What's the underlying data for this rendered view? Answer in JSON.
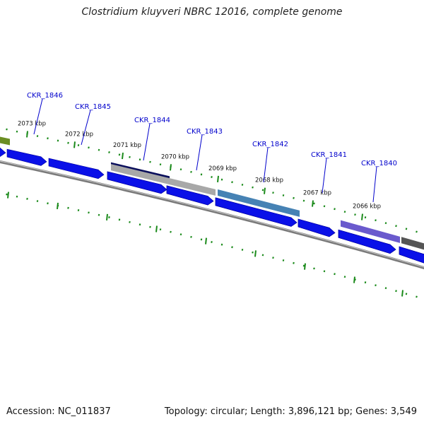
{
  "title": "Clostridium kluyveri NBRC 12016, complete genome",
  "footer": {
    "accession": "Accession: NC_011837",
    "topology": "Topology: circular; Length: 3,896,121 bp; Genes: 3,549"
  },
  "colors": {
    "background": "#ffffff",
    "gene_label": "#0000cc",
    "forward_cds": "#0a10e8",
    "reverse_cds": "#0a10e8",
    "tick": "#1a8a1a",
    "backbone": "#7a7a7a"
  },
  "ruler": {
    "unit": "kbp",
    "ticks": [
      {
        "label": "2073 kbp"
      },
      {
        "label": "2072 kbp"
      },
      {
        "label": "2071 kbp"
      },
      {
        "label": "2070 kbp"
      },
      {
        "label": "2069 kbp"
      },
      {
        "label": "2068 kbp"
      },
      {
        "label": "2067 kbp"
      },
      {
        "label": "2066 kbp"
      }
    ]
  },
  "genes": [
    {
      "label": "CKR_1846"
    },
    {
      "label": "CKR_1845"
    },
    {
      "label": "CKR_1844"
    },
    {
      "label": "CKR_1843"
    },
    {
      "label": "CKR_1842"
    },
    {
      "label": "CKR_1841"
    },
    {
      "label": "CKR_1840"
    }
  ],
  "feature_tracks": [
    {
      "name": "olive-feature",
      "color": "#6b8e23"
    },
    {
      "name": "navy-feature",
      "color": "#0b0f5c"
    },
    {
      "name": "gray-feature",
      "color": "#a8a8a8"
    },
    {
      "name": "steelblue-feature",
      "color": "#4682b4"
    },
    {
      "name": "slateblue-feature",
      "color": "#6a5acd"
    },
    {
      "name": "darkgray-feature",
      "color": "#555555"
    }
  ]
}
